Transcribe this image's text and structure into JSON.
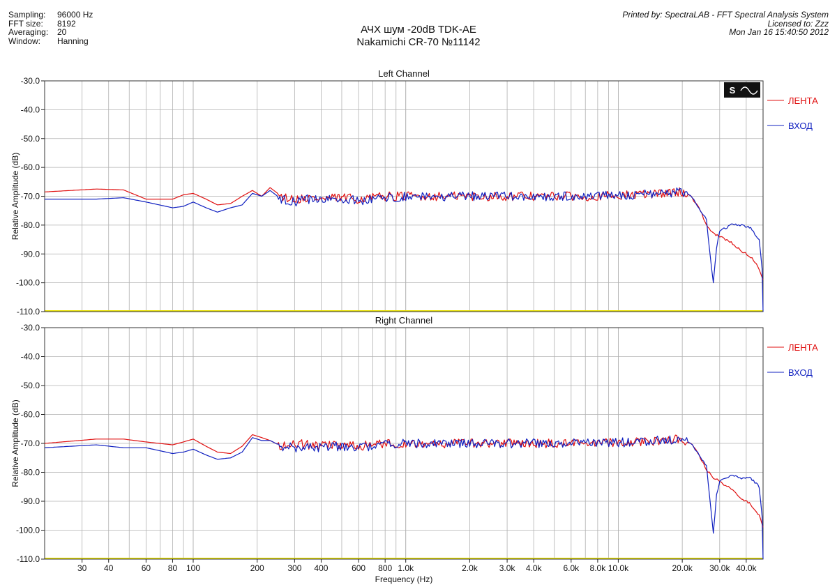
{
  "header_left": {
    "rows": [
      {
        "label": "Sampling:",
        "value": "96000 Hz"
      },
      {
        "label": "FFT size:",
        "value": "8192"
      },
      {
        "label": "Averaging:",
        "value": "20"
      },
      {
        "label": "Window:",
        "value": "Hanning"
      }
    ]
  },
  "header_right": {
    "line1": "Printed by: SpectraLAB - FFT Spectral Analysis System",
    "line2": "Licensed to: Zzz",
    "line3": "Mon Jan 16 15:40:50 2012"
  },
  "title": {
    "line1": "АЧХ шум -20dB  TDK-AE",
    "line2": "Nakamichi CR-70 №11142"
  },
  "logo_text": "S",
  "colors": {
    "tape": "#e01010",
    "input": "#1020c0",
    "grid": "#b0b0b0",
    "baseline": "#e8e000"
  },
  "chart_data": [
    {
      "type": "line",
      "title": "Left Channel",
      "xlabel": "Frequency (Hz)",
      "ylabel": "Relative Amplitude (dB)",
      "xscale": "log",
      "xlim": [
        20,
        48000
      ],
      "ylim": [
        -110,
        -30
      ],
      "yticks": [
        "-30.0",
        "-40.0",
        "-50.0",
        "-60.0",
        "-70.0",
        "-80.0",
        "-90.0",
        "-100.0",
        "-110.0"
      ],
      "legend_position": "right",
      "series": [
        {
          "name": "ЛЕНТА",
          "color": "#e01010",
          "x": [
            20,
            35,
            47,
            60,
            80,
            90,
            100,
            115,
            130,
            150,
            170,
            190,
            210,
            230,
            260,
            300,
            350,
            400,
            500,
            600,
            700,
            800,
            1000,
            1500,
            2000,
            3000,
            5000,
            8000,
            12000,
            16000,
            20000,
            22000,
            24000,
            26000,
            28000,
            30000,
            34000,
            38000,
            42000,
            46000,
            48000
          ],
          "y": [
            -68.5,
            -67.5,
            -67.8,
            -71,
            -71,
            -69.5,
            -69,
            -71,
            -73,
            -72.5,
            -70,
            -68,
            -70,
            -67,
            -70,
            -71,
            -70.5,
            -71,
            -70.5,
            -71,
            -70.5,
            -70,
            -70,
            -70,
            -70,
            -70,
            -70,
            -70,
            -69.5,
            -69,
            -68.5,
            -70,
            -74,
            -80,
            -83,
            -84,
            -86,
            -89,
            -91,
            -95,
            -99
          ]
        },
        {
          "name": "ВХОД",
          "color": "#1020c0",
          "x": [
            20,
            35,
            47,
            60,
            80,
            90,
            100,
            115,
            130,
            150,
            170,
            190,
            210,
            230,
            260,
            300,
            350,
            400,
            500,
            600,
            700,
            800,
            1000,
            1500,
            2000,
            3000,
            5000,
            8000,
            12000,
            16000,
            20000,
            22000,
            24000,
            26000,
            27000,
            28000,
            29000,
            30000,
            34000,
            38000,
            42000,
            46000,
            47500,
            48000
          ],
          "y": [
            -71,
            -71,
            -70.5,
            -72,
            -74,
            -73.5,
            -72,
            -74,
            -75.5,
            -74,
            -73,
            -69,
            -70,
            -68,
            -71,
            -72,
            -71,
            -71.5,
            -71,
            -71.5,
            -71,
            -70.5,
            -70,
            -70,
            -70,
            -70,
            -70,
            -70,
            -69.5,
            -69,
            -68.5,
            -70,
            -74,
            -78,
            -90,
            -100,
            -88,
            -82,
            -80,
            -80,
            -81,
            -85,
            -95,
            -110
          ]
        }
      ]
    },
    {
      "type": "line",
      "title": "Right Channel",
      "xlabel": "Frequency (Hz)",
      "ylabel": "Relative Amplitude (dB)",
      "xscale": "log",
      "xlim": [
        20,
        48000
      ],
      "ylim": [
        -110,
        -30
      ],
      "yticks": [
        "-30.0",
        "-40.0",
        "-50.0",
        "-60.0",
        "-70.0",
        "-80.0",
        "-90.0",
        "-100.0",
        "-110.0"
      ],
      "xticks": [
        "30",
        "40",
        "60",
        "80",
        "100",
        "200",
        "300",
        "400",
        "600",
        "800",
        "1.0k",
        "2.0k",
        "3.0k",
        "4.0k",
        "6.0k",
        "8.0k",
        "10.0k",
        "20.0k",
        "30.0k",
        "40.0k"
      ],
      "legend_position": "right",
      "series": [
        {
          "name": "ЛЕНТА",
          "color": "#e01010",
          "x": [
            20,
            35,
            47,
            60,
            80,
            90,
            100,
            115,
            130,
            150,
            170,
            190,
            210,
            230,
            260,
            300,
            350,
            400,
            500,
            600,
            700,
            800,
            1000,
            1500,
            2000,
            3000,
            5000,
            8000,
            12000,
            16000,
            20000,
            22000,
            24000,
            26000,
            28000,
            30000,
            34000,
            38000,
            42000,
            46000,
            48000
          ],
          "y": [
            -70,
            -68.5,
            -68.5,
            -69.5,
            -70.5,
            -69.5,
            -68.5,
            -71,
            -73,
            -73.5,
            -71,
            -67,
            -68,
            -69,
            -71,
            -70,
            -70.5,
            -71,
            -70.5,
            -71,
            -70.5,
            -70,
            -70,
            -70,
            -70,
            -70,
            -70,
            -70,
            -69.5,
            -69,
            -68.5,
            -70,
            -74,
            -79,
            -82,
            -83,
            -86,
            -89,
            -91,
            -95,
            -99
          ]
        },
        {
          "name": "ВХОД",
          "color": "#1020c0",
          "x": [
            20,
            35,
            47,
            60,
            80,
            90,
            100,
            115,
            130,
            150,
            170,
            190,
            210,
            230,
            260,
            300,
            350,
            400,
            500,
            600,
            700,
            800,
            1000,
            1500,
            2000,
            3000,
            5000,
            8000,
            12000,
            16000,
            20000,
            22000,
            24000,
            26000,
            27000,
            28000,
            29000,
            30000,
            34000,
            38000,
            42000,
            46000,
            47500,
            48000
          ],
          "y": [
            -71.5,
            -70.5,
            -71.5,
            -71.5,
            -73.5,
            -73,
            -72,
            -74,
            -75.5,
            -75,
            -73,
            -68,
            -69,
            -69,
            -71,
            -71.5,
            -71,
            -71.5,
            -71,
            -71.5,
            -71,
            -70.5,
            -70,
            -70,
            -70,
            -70,
            -70,
            -70,
            -69.5,
            -69,
            -68.5,
            -70,
            -74,
            -78,
            -90,
            -101,
            -88,
            -83,
            -81,
            -82,
            -82,
            -85,
            -95,
            -110
          ]
        }
      ]
    }
  ]
}
